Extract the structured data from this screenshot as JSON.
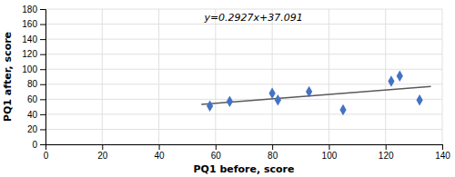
{
  "chart_data": {
    "type": "scatter",
    "xlabel": "PQ1 before, score",
    "ylabel": "PQ1 after, score",
    "annotation": "y=0.2927x+37.091",
    "series": [
      {
        "type": "scatter",
        "marker": "diamond",
        "color": "#4472C4",
        "x": [
          58,
          65,
          80,
          82,
          93,
          105,
          122,
          125,
          132
        ],
        "values": [
          51,
          57,
          68,
          59,
          70,
          46,
          84,
          91,
          59
        ]
      },
      {
        "type": "line",
        "color": "#595959",
        "x": [
          55,
          136
        ],
        "values": [
          53.1895,
          76.8982
        ]
      }
    ],
    "xlim": [
      0,
      140
    ],
    "ylim": [
      0,
      180
    ],
    "xticks": [
      0,
      20,
      40,
      60,
      80,
      100,
      120,
      140
    ],
    "yticks": [
      0,
      20,
      40,
      60,
      80,
      100,
      120,
      140,
      160,
      180
    ],
    "grid": true
  }
}
